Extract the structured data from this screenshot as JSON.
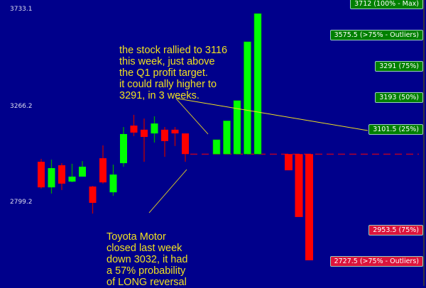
{
  "chart_data": {
    "type": "candlestick",
    "y_ticks": [
      "3733.1",
      "3266.2",
      "2799.2"
    ],
    "ylim": [
      2680,
      3733.1
    ],
    "candles": [
      {
        "o": 2995,
        "h": 3009,
        "l": 2865,
        "c": 2871
      },
      {
        "o": 2871,
        "h": 3005,
        "l": 2841,
        "c": 2964
      },
      {
        "o": 2978,
        "h": 2988,
        "l": 2858,
        "c": 2889
      },
      {
        "o": 2899,
        "h": 2985,
        "l": 2895,
        "c": 2923
      },
      {
        "o": 2923,
        "h": 2998,
        "l": 2923,
        "c": 2971
      },
      {
        "o": 2875,
        "h": 2878,
        "l": 2744,
        "c": 2796
      },
      {
        "o": 3012,
        "h": 3074,
        "l": 2889,
        "c": 2895
      },
      {
        "o": 2847,
        "h": 2981,
        "l": 2830,
        "c": 2933
      },
      {
        "o": 2988,
        "h": 3163,
        "l": 2971,
        "c": 3129
      },
      {
        "o": 3170,
        "h": 3222,
        "l": 3119,
        "c": 3136
      },
      {
        "o": 3150,
        "h": 3204,
        "l": 2995,
        "c": 3115
      },
      {
        "o": 3132,
        "h": 3215,
        "l": 3088,
        "c": 3180
      },
      {
        "o": 3150,
        "h": 3163,
        "l": 3019,
        "c": 3095
      },
      {
        "o": 3150,
        "h": 3163,
        "l": 3071,
        "c": 3132
      },
      {
        "o": 3132,
        "h": 3132,
        "l": 2995,
        "c": 3032
      }
    ],
    "baseline": 3032,
    "up_projection": [
      3101.5,
      3193,
      3291,
      3575.5,
      3712
    ],
    "down_projection": [
      2953.5,
      2727.5,
      2518
    ],
    "levels_up": [
      {
        "label": "3712 (100% - Max)"
      },
      {
        "label": "3575.5 (>75% - Outliers)"
      },
      {
        "label": "3291 (75%)"
      },
      {
        "label": "3193 (50%)"
      },
      {
        "label": "3101.5 (25%)"
      }
    ],
    "levels_down": [
      {
        "label": "2953.5 (75%)"
      },
      {
        "label": "2727.5 (>75% - Outliers)"
      }
    ],
    "colors": {
      "background": "#00008b",
      "up": "#00ff00",
      "down": "#ff0000",
      "up_tag": "#008000",
      "down_tag": "#dc143c",
      "annotation": "#f0e020"
    }
  },
  "annotations": {
    "top": "the stock rallied to 3116\nthis week, just above\nthe Q1 profit target.\nit could rally higher to\n3291, in 3 weeks.",
    "bottom": "Toyota Motor\nclosed last week\ndown 3032, it had\na 57% probability\nof LONG reversal"
  }
}
